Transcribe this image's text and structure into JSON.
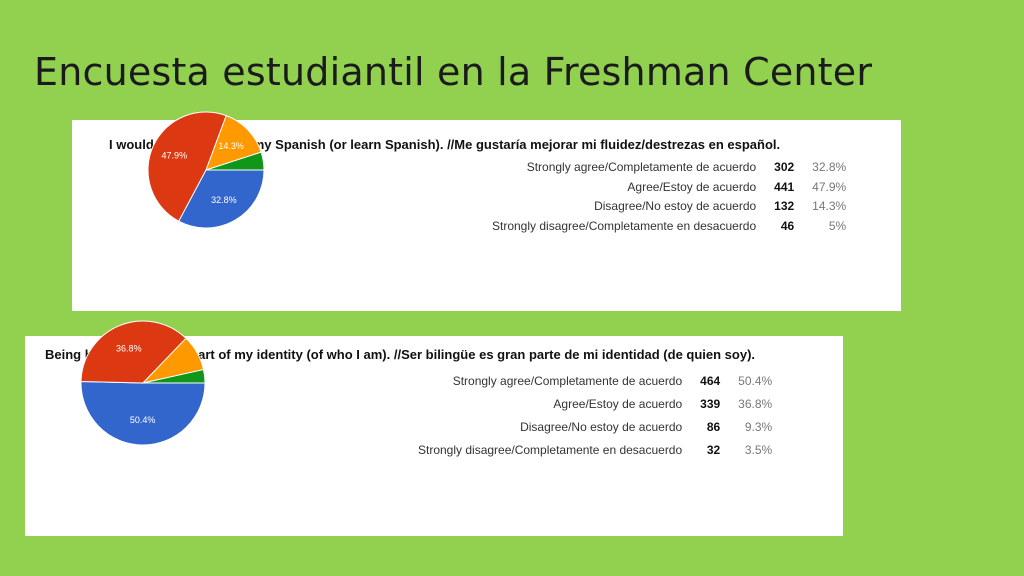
{
  "slide": {
    "title": "Encuesta estudiantil en la Freshman Center"
  },
  "colors": {
    "background": "#92d050",
    "panel": "#ffffff",
    "slices": [
      "#3366cc",
      "#dc3912",
      "#ff9900",
      "#109618"
    ]
  },
  "chart_data": [
    {
      "type": "pie",
      "title": "I would like to improve my Spanish (or learn Spanish). //Me gustaría mejorar mi fluidez/destrezas en español.",
      "categories": [
        "Strongly agree/Completamente de acuerdo",
        "Agree/Estoy de acuerdo",
        "Disagree/No estoy de acuerdo",
        "Strongly disagree/Completamente en desacuerdo"
      ],
      "values": [
        302,
        441,
        132,
        46
      ],
      "percents": [
        "32.8%",
        "47.9%",
        "14.3%",
        "5%"
      ],
      "slice_labels": [
        "32.8%",
        "47.9%",
        "14.3%",
        ""
      ]
    },
    {
      "type": "pie",
      "title": "Being bilingual is a big part of my identity (of who I am). //Ser bilingüe es gran parte de mi identidad (de quien soy).",
      "categories": [
        "Strongly agree/Completamente de acuerdo",
        "Agree/Estoy de acuerdo",
        "Disagree/No estoy de acuerdo",
        "Strongly disagree/Completamente en desacuerdo"
      ],
      "values": [
        464,
        339,
        86,
        32
      ],
      "percents": [
        "50.4%",
        "36.8%",
        "9.3%",
        "3.5%"
      ],
      "slice_labels": [
        "50.4%",
        "36.8%",
        "",
        ""
      ]
    }
  ]
}
